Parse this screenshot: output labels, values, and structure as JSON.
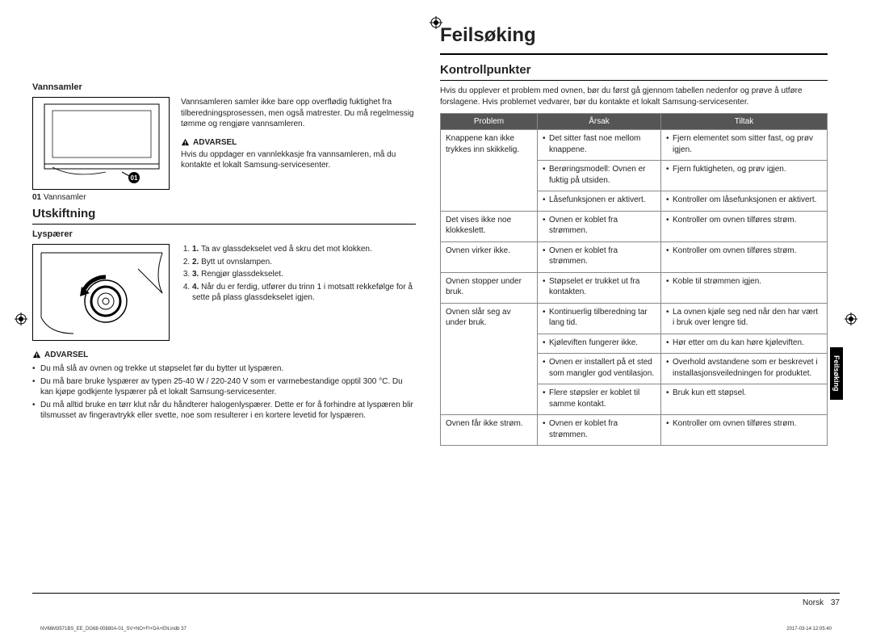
{
  "title": "Feilsøking",
  "sideTab": "Feilsøking",
  "left": {
    "vannsamler": {
      "heading": "Vannsamler",
      "captionNum": "01",
      "captionText": "Vannsamler",
      "desc": "Vannsamleren samler ikke bare opp overflødig fuktighet fra tilberedningsprosessen, men også matrester. Du må regelmessig tømme og rengjøre vannsamleren.",
      "warnLabel": "ADVARSEL",
      "warnText": "Hvis du oppdager en vannlekkasje fra vannsamleren, må du kontakte et lokalt Samsung-servicesenter."
    },
    "utskiftning": {
      "heading": "Utskiftning",
      "bulbHeading": "Lyspærer",
      "steps": [
        "Ta av glassdekselet ved å skru det mot klokken.",
        "Bytt ut ovnslampen.",
        "Rengjør glassdekselet.",
        "Når du er ferdig, utfører du trinn 1 i motsatt rekkefølge for å sette på plass glassdekselet igjen."
      ],
      "warnLabel": "ADVARSEL",
      "warnBullets": [
        "Du må slå av ovnen og trekke ut støpselet før du bytter ut lyspæren.",
        "Du må bare bruke lyspærer av typen 25-40 W / 220-240 V som er varmebestandige opptil 300 °C. Du kan kjøpe godkjente lyspærer på et lokalt Samsung-servicesenter.",
        "Du må alltid bruke en tørr klut når du håndterer halogenlyspærer. Dette er for å forhindre at lyspæren blir tilsmusset av fingeravtrykk eller svette, noe som resulterer i en kortere levetid for lyspæren."
      ]
    }
  },
  "right": {
    "heading": "Kontrollpunkter",
    "intro": "Hvis du opplever et problem med ovnen, bør du først gå gjennom tabellen nedenfor og prøve å utføre forslagene. Hvis problemet vedvarer, bør du kontakte et lokalt Samsung-servicesenter.",
    "headers": {
      "c1": "Problem",
      "c2": "Årsak",
      "c3": "Tiltak"
    },
    "rows": [
      {
        "problem": "Knappene kan ikke trykkes inn skikkelig.",
        "causes": [
          "Det sitter fast noe mellom knappene.",
          "Berøringsmodell: Ovnen er fuktig på utsiden.",
          "Låsefunksjonen er aktivert."
        ],
        "actions": [
          "Fjern elementet som sitter fast, og prøv igjen.",
          "Fjern fuktigheten, og prøv igjen.",
          "Kontroller om låsefunksjonen er aktivert."
        ]
      },
      {
        "problem": "Det vises ikke noe klokkeslett.",
        "causes": [
          "Ovnen er koblet fra strømmen."
        ],
        "actions": [
          "Kontroller om ovnen tilføres strøm."
        ]
      },
      {
        "problem": "Ovnen virker ikke.",
        "causes": [
          "Ovnen er koblet fra strømmen."
        ],
        "actions": [
          "Kontroller om ovnen tilføres strøm."
        ]
      },
      {
        "problem": "Ovnen stopper under bruk.",
        "causes": [
          "Støpselet er trukket ut fra kontakten."
        ],
        "actions": [
          "Koble til strømmen igjen."
        ]
      },
      {
        "problem": "Ovnen slår seg av under bruk.",
        "causes": [
          "Kontinuerlig tilberedning tar lang tid.",
          "Kjøleviften fungerer ikke.",
          "Ovnen er installert på et sted som mangler god ventilasjon.",
          "Flere støpsler er koblet til samme kontakt."
        ],
        "actions": [
          "La ovnen kjøle seg ned når den har vært i bruk over lengre tid.",
          "Hør etter om du kan høre kjøleviften.",
          "Overhold avstandene som er beskrevet i installasjonsveiledningen for produktet.",
          "Bruk kun ett støpsel."
        ]
      },
      {
        "problem": "Ovnen får ikke strøm.",
        "causes": [
          "Ovnen er koblet fra strømmen."
        ],
        "actions": [
          "Kontroller om ovnen tilføres strøm."
        ]
      }
    ]
  },
  "footer": {
    "lang": "Norsk",
    "page": "37"
  },
  "printLeft": "NV66M3571BS_EE_DG68-00880A-01_SV+NO+FI+DA+EN.indb   37",
  "printRight": "2017-03-14   12:05:40"
}
